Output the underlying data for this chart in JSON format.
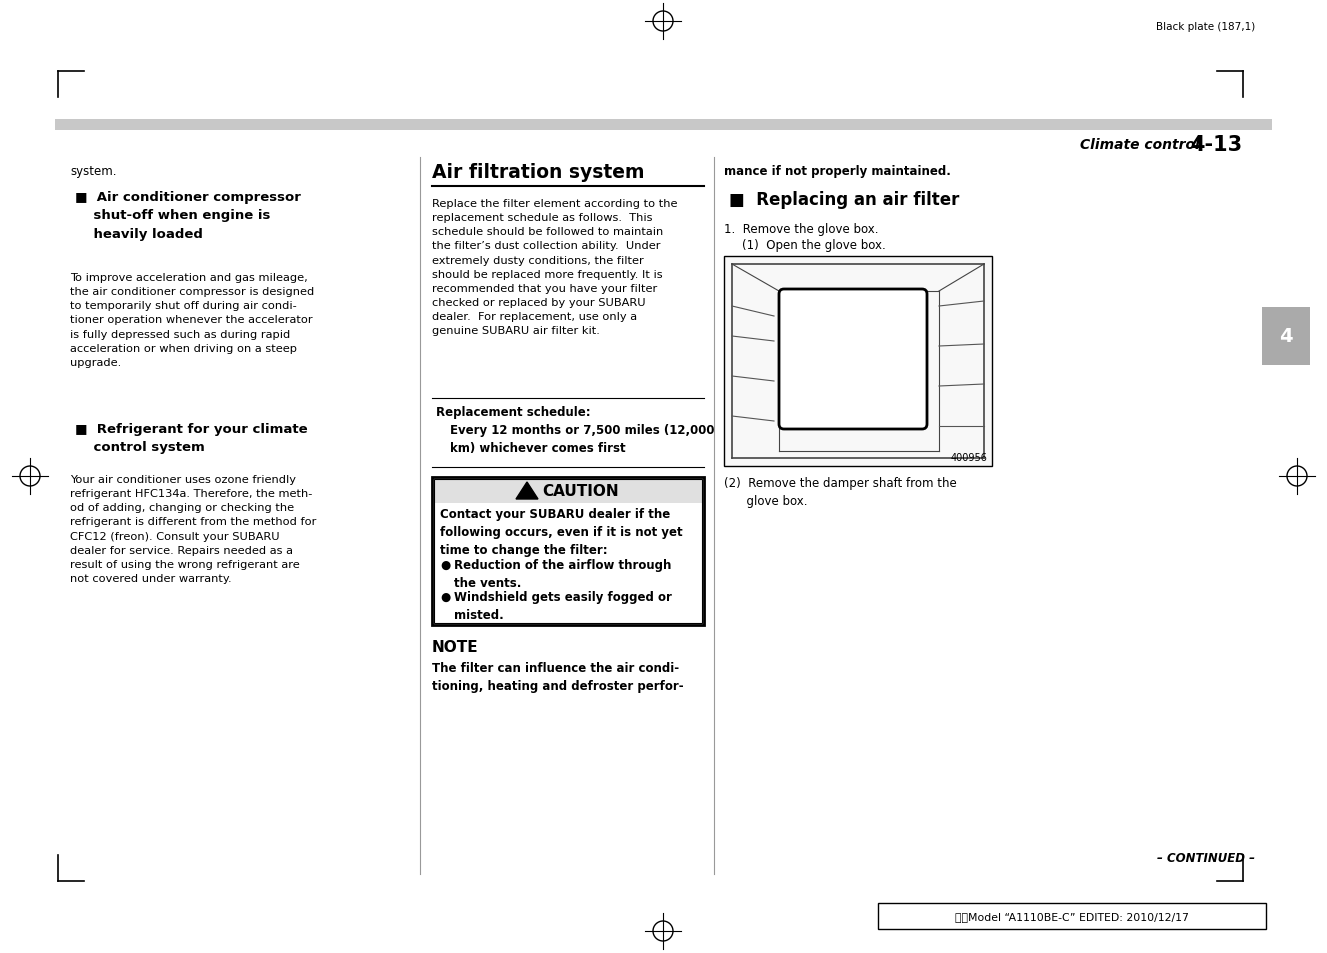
{
  "page_bg": "#ffffff",
  "header_text": "Black plate (187,1)",
  "section_label_italic": "Climate control",
  "section_label_bold": "4-13",
  "tab_label": "4",
  "tab_bg": "#b0b0b0",
  "col1_top_text": "system.",
  "col1_head1": "■  Air conditioner compressor\n    shut-off when engine is\n    heavily loaded",
  "col1_body1": "To improve acceleration and gas mileage,\nthe air conditioner compressor is designed\nto temporarily shut off during air condi-\ntioner operation whenever the accelerator\nis fully depressed such as during rapid\nacceleration or when driving on a steep\nupgrade.",
  "col1_head2": "■  Refrigerant for your climate\n    control system",
  "col1_body2": "Your air conditioner uses ozone friendly\nrefrigerant HFC134a. Therefore, the meth-\nod of adding, changing or checking the\nrefrigerant is different from the method for\nCFC12 (freon). Consult your SUBARU\ndealer for service. Repairs needed as a\nresult of using the wrong refrigerant are\nnot covered under warranty.",
  "col2_title": "Air filtration system",
  "col2_body1": "Replace the filter element according to the\nreplacement schedule as follows.  This\nschedule should be followed to maintain\nthe filter’s dust collection ability.  Under\nextremely dusty conditions, the filter\nshould be replaced more frequently. It is\nrecommended that you have your filter\nchecked or replaced by your SUBARU\ndealer.  For replacement, use only a\ngenuine SUBARU air filter kit.",
  "replacement_label": "Replacement schedule:",
  "replacement_body": "Every 12 months or 7,500 miles (12,000\nkm) whichever comes first",
  "caution_title": "CAUTION",
  "caution_body": "Contact your SUBARU dealer if the\nfollowing occurs, even if it is not yet\ntime to change the filter:",
  "caution_bullet1": "Reduction of the airflow through\nthe vents.",
  "caution_bullet2": "Windshield gets easily fogged or\nmisted.",
  "note_title": "NOTE",
  "note_body": "The filter can influence the air condi-\ntioning, heating and defroster perfor-",
  "col3_top": "mance if not properly maintained.",
  "col3_head": "■  Replacing an air filter",
  "col3_body1_a": "1.  Remove the glove box.",
  "col3_body1_b": "(1)  Open the glove box.",
  "img_label": "400956",
  "col3_body2": "(2)  Remove the damper shaft from the\n      glove box.",
  "continued": "– CONTINUED –",
  "footer_text": "北米Model “A1110BE-C” EDITED: 2010/12/17"
}
